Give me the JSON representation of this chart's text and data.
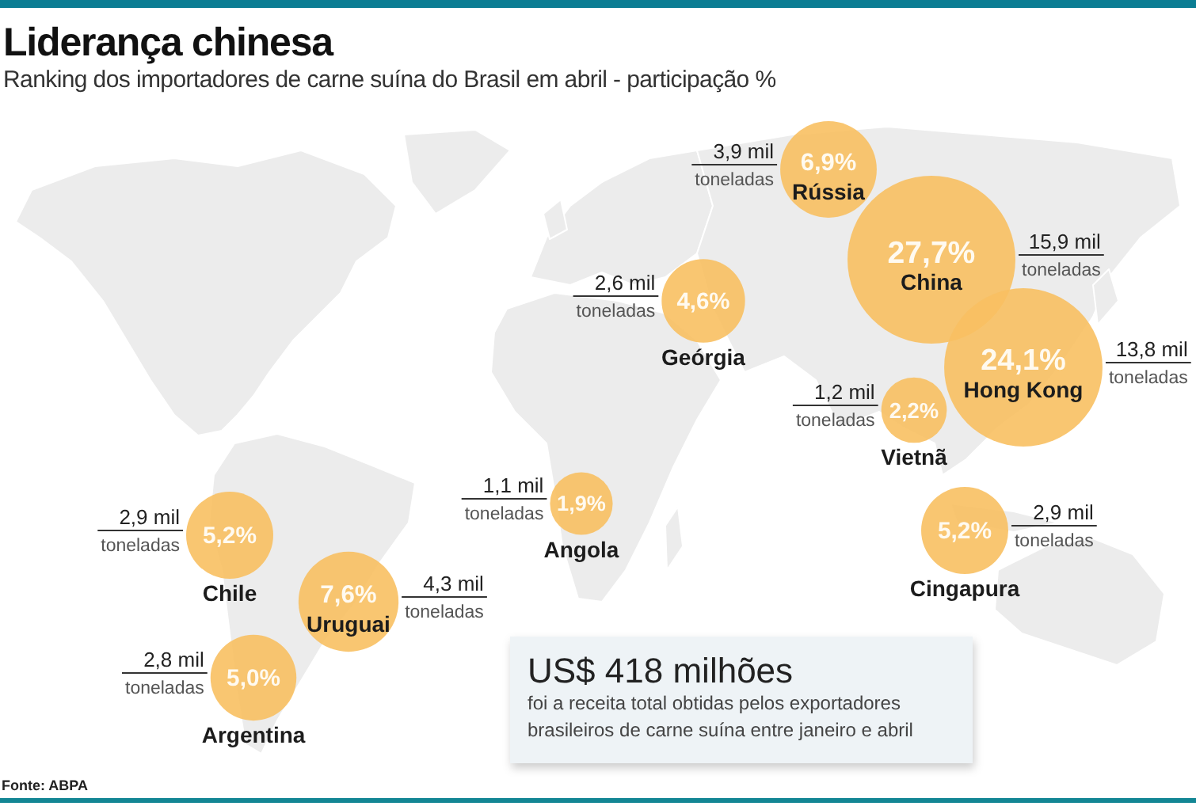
{
  "chart_data": {
    "type": "other",
    "title": "Liderança chinesa",
    "subtitle": "Ranking dos importadores de carne suína do Brasil em abril - participação %",
    "categories": [
      "Rússia",
      "China",
      "Hong Kong",
      "Geórgia",
      "Vietnã",
      "Angola",
      "Chile",
      "Uruguai",
      "Argentina",
      "Cingapura"
    ],
    "series": [
      {
        "color": "#f8c062",
        "values": [
          6.9,
          27.7,
          24.1,
          4.6,
          2.2,
          1.9,
          5.2,
          7.6,
          5.0,
          5.2
        ],
        "value_labels": [
          "6,9%",
          "27,7%",
          "24,1%",
          "4,6%",
          "2,2%",
          "1,9%",
          "5,2%",
          "7,6%",
          "5,0%",
          "5,2%"
        ]
      },
      {
        "values": [
          3.9,
          15.9,
          13.8,
          2.6,
          1.2,
          1.1,
          2.9,
          4.3,
          2.8,
          2.9
        ],
        "value_labels": [
          "3,9 mil toneladas",
          "15,9 mil toneladas",
          "13,8 mil toneladas",
          "2,6 mil toneladas",
          "1,2 mil toneladas",
          "1,1 mil toneladas",
          "2,9 mil toneladas",
          "4,3 mil toneladas",
          "2,8 mil toneladas",
          "2,9 mil toneladas"
        ]
      }
    ],
    "annotations": [
      "US$ 418 milhões",
      "foi a receita total obtidas pelos exportadores brasileiros de carne suína entre janeiro e abril",
      "Fonte: ABPA"
    ]
  }
}
